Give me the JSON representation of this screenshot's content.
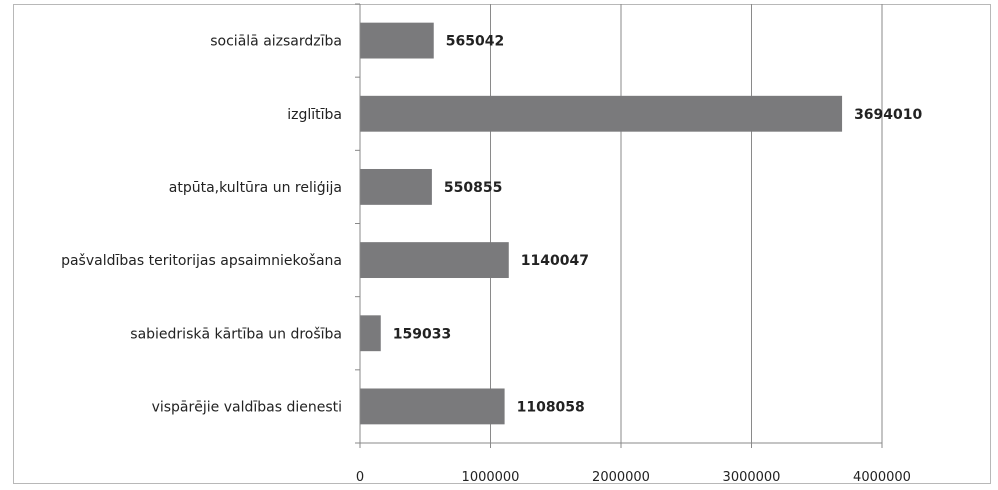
{
  "chart_data": {
    "type": "bar",
    "orientation": "horizontal",
    "categories": [
      "sociālā aizsardzība",
      "izglītība",
      "atpūta,kultūra un reliģija",
      "pašvaldības teritorijas apsaimniekošana",
      "sabiedriskā kārtība un drošība",
      "vispārējie valdības dienesti"
    ],
    "values": [
      565042,
      3694010,
      550855,
      1140047,
      159033,
      1108058
    ],
    "data_labels": [
      "565042",
      "3694010",
      "550855",
      "1140047",
      "159033",
      "1108058"
    ],
    "xlim": [
      0,
      4000000
    ],
    "x_ticks": [
      0,
      1000000,
      2000000,
      3000000,
      4000000
    ],
    "x_tick_labels": [
      "0",
      "1000000",
      "2000000",
      "3000000",
      "4000000"
    ],
    "grid": "vertical",
    "bar_color": "#7a7a7c",
    "title": "",
    "xlabel": "",
    "ylabel": ""
  }
}
